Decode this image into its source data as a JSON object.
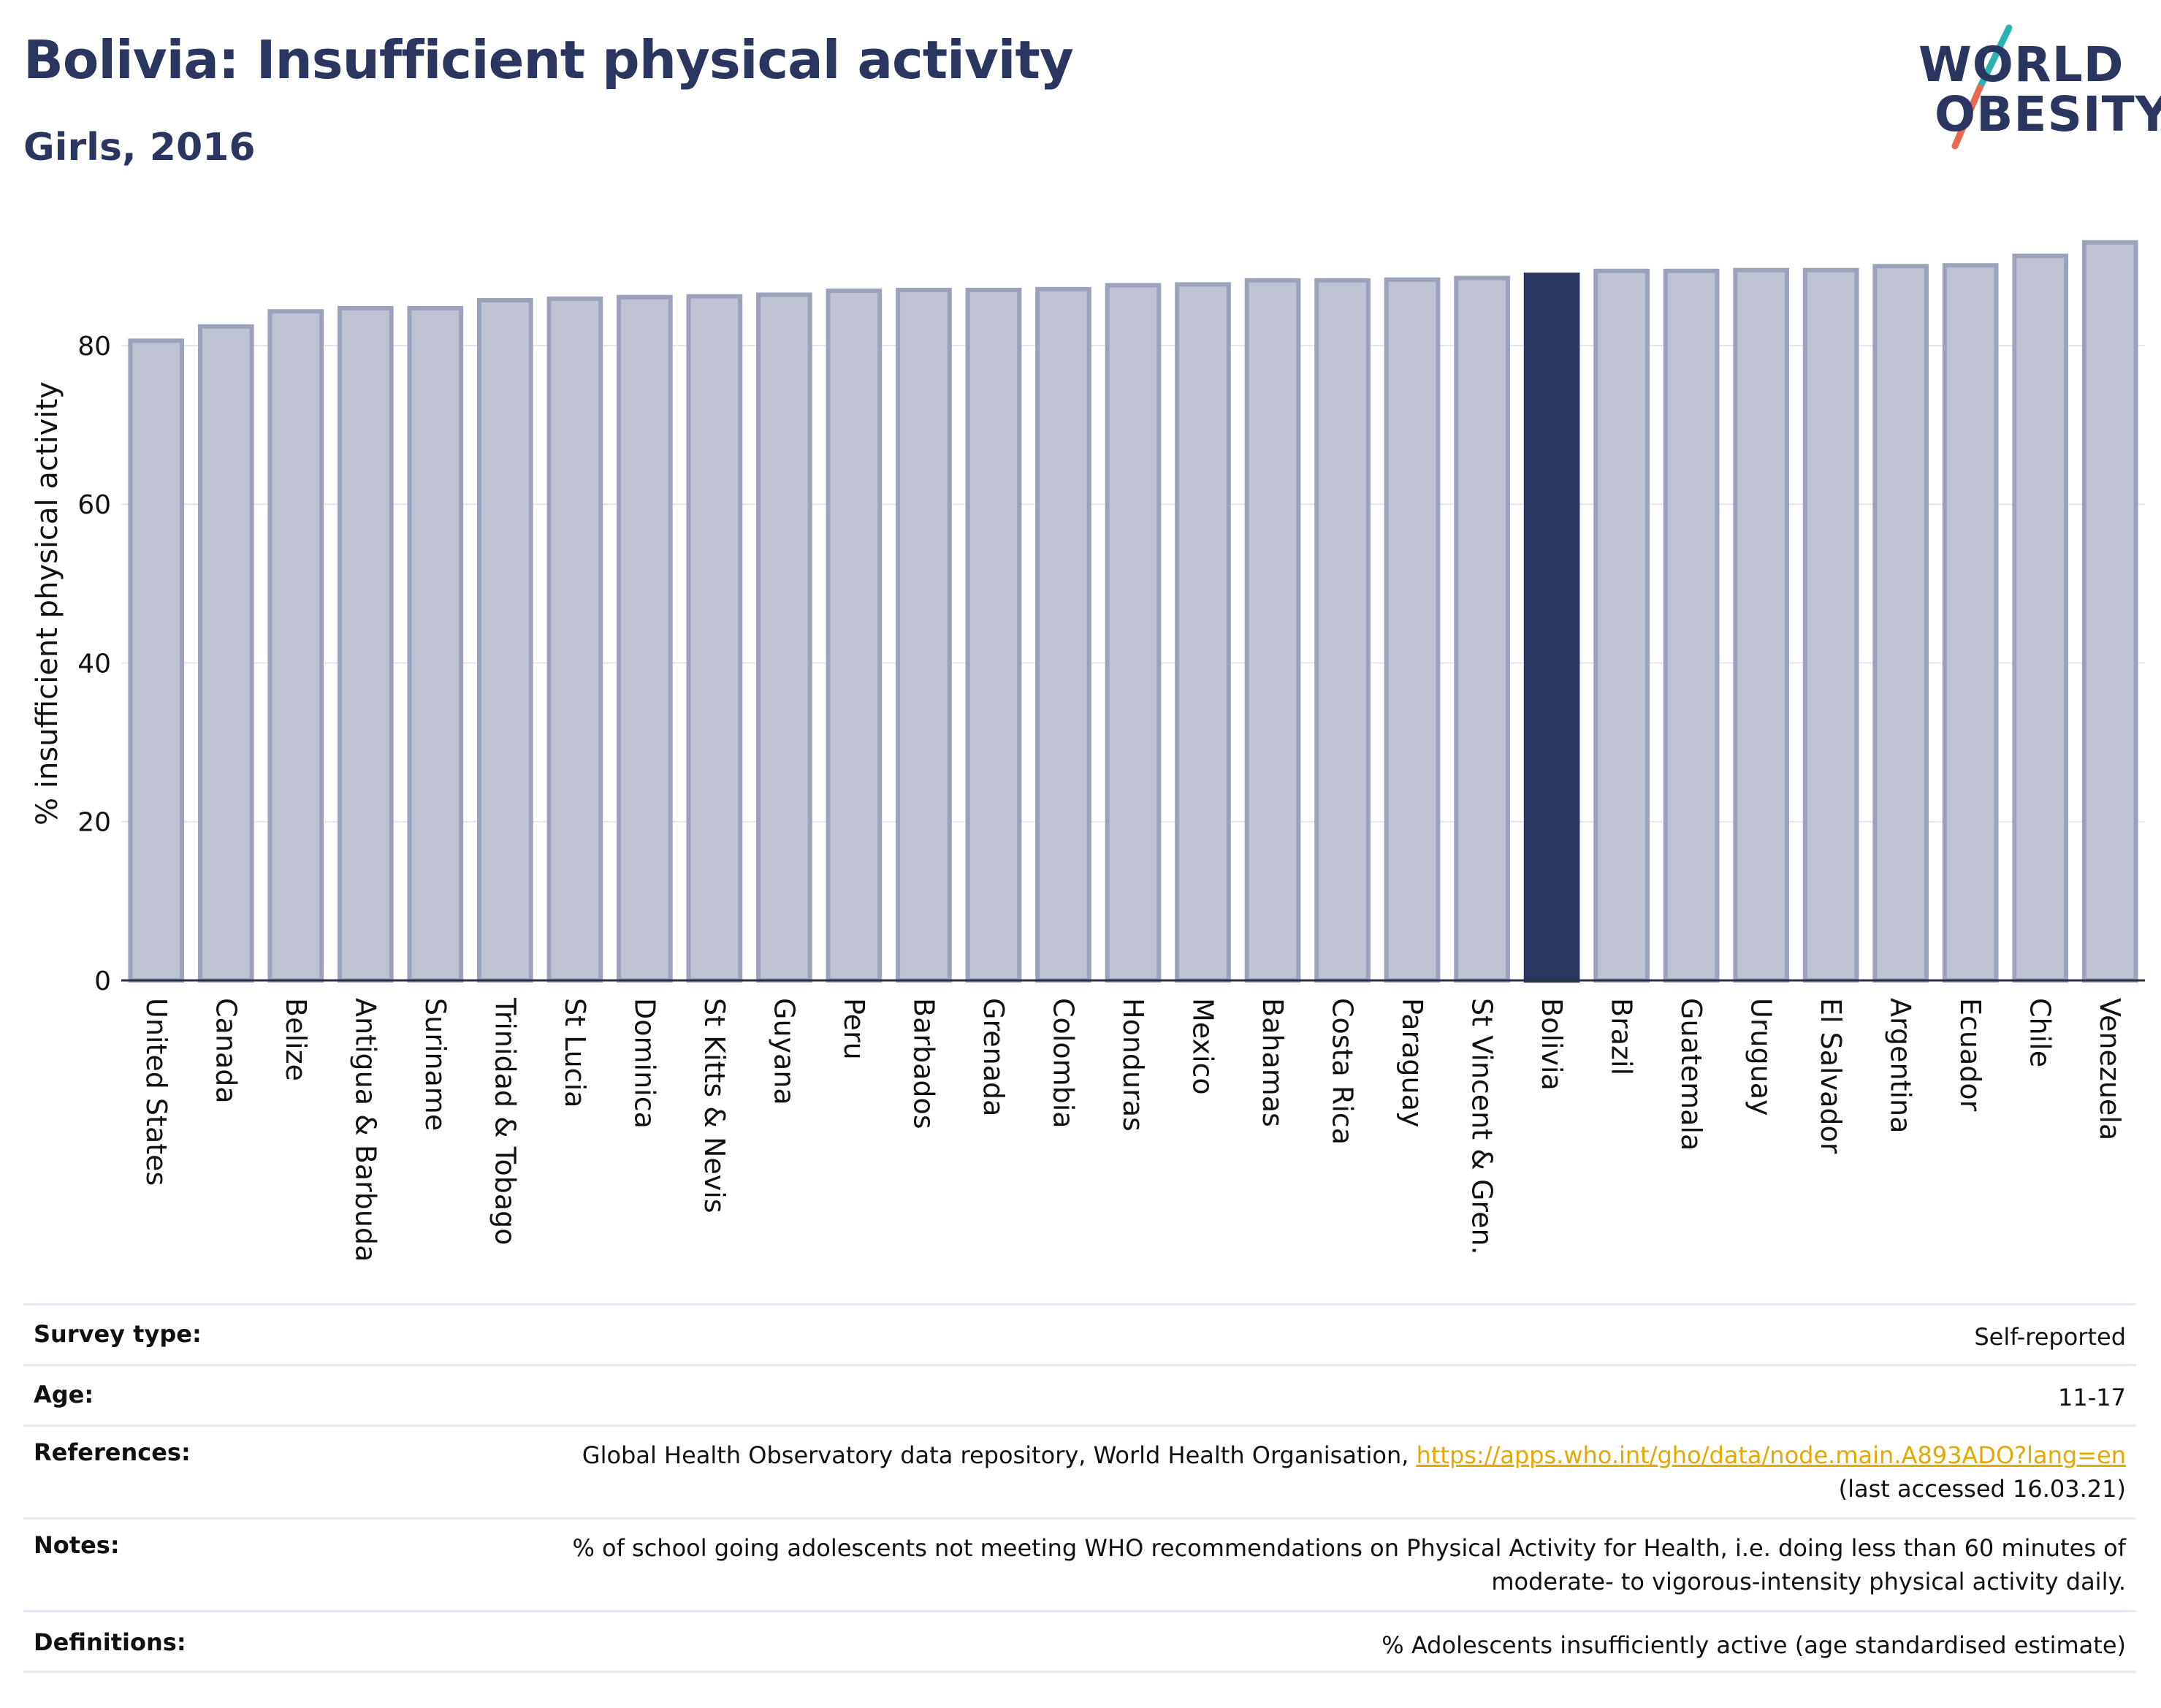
{
  "header": {
    "title": "Bolivia: Insufficient physical activity",
    "subtitle": "Girls, 2016"
  },
  "logo": {
    "line1": "WORLD",
    "line2": "OBESITY",
    "slash_colors": [
      "#2ab3b0",
      "#e8694f"
    ]
  },
  "colors": {
    "bar_default": "#bfc2d1",
    "bar_default_border": "#9ca2bb",
    "bar_highlight": "#2a3560",
    "text_dark": "#2a3560",
    "link": "#e6a800"
  },
  "chart_data": {
    "type": "bar",
    "title": "Bolivia: Insufficient physical activity",
    "subtitle": "Girls, 2016",
    "ylabel": "% insufficient physical activity",
    "xlabel": "",
    "ylim": [
      0,
      95
    ],
    "yticks": [
      0,
      20,
      40,
      60,
      80
    ],
    "grid": true,
    "highlight": "Bolivia",
    "categories": [
      "United States",
      "Canada",
      "Belize",
      "Antigua & Barbuda",
      "Suriname",
      "Trinidad & Tobago",
      "St Lucia",
      "Dominica",
      "St Kitts & Nevis",
      "Guyana",
      "Peru",
      "Barbados",
      "Grenada",
      "Colombia",
      "Honduras",
      "Mexico",
      "Bahamas",
      "Costa Rica",
      "Paraguay",
      "St Vincent & Gren.",
      "Bolivia",
      "Brazil",
      "Guatemala",
      "Uruguay",
      "El Salvador",
      "Argentina",
      "Ecuador",
      "Chile",
      "Venezuela"
    ],
    "values": [
      80.6,
      82.4,
      84.3,
      84.7,
      84.7,
      85.7,
      85.9,
      86.1,
      86.2,
      86.4,
      86.9,
      87.0,
      87.0,
      87.1,
      87.6,
      87.7,
      88.2,
      88.2,
      88.3,
      88.5,
      88.9,
      89.4,
      89.4,
      89.5,
      89.5,
      90.0,
      90.1,
      91.3,
      93.0
    ]
  },
  "info": {
    "survey_type_label": "Survey type:",
    "survey_type_value": "Self-reported",
    "age_label": "Age:",
    "age_value": "11-17",
    "references_label": "References:",
    "references_text": "Global Health Observatory data repository, World Health Organisation, ",
    "references_link": "https://apps.who.int/gho/data/node.main.A893ADO?lang=en",
    "references_accessed": "(last accessed 16.03.21)",
    "notes_label": "Notes:",
    "notes_line1": "% of school going adolescents not meeting WHO recommendations on Physical Activity for Health, i.e. doing less than 60 minutes of",
    "notes_line2": "moderate- to vigorous-intensity physical activity daily.",
    "definitions_label": "Definitions:",
    "definitions_value": "% Adolescents insufficiently active (age standardised estimate)"
  }
}
